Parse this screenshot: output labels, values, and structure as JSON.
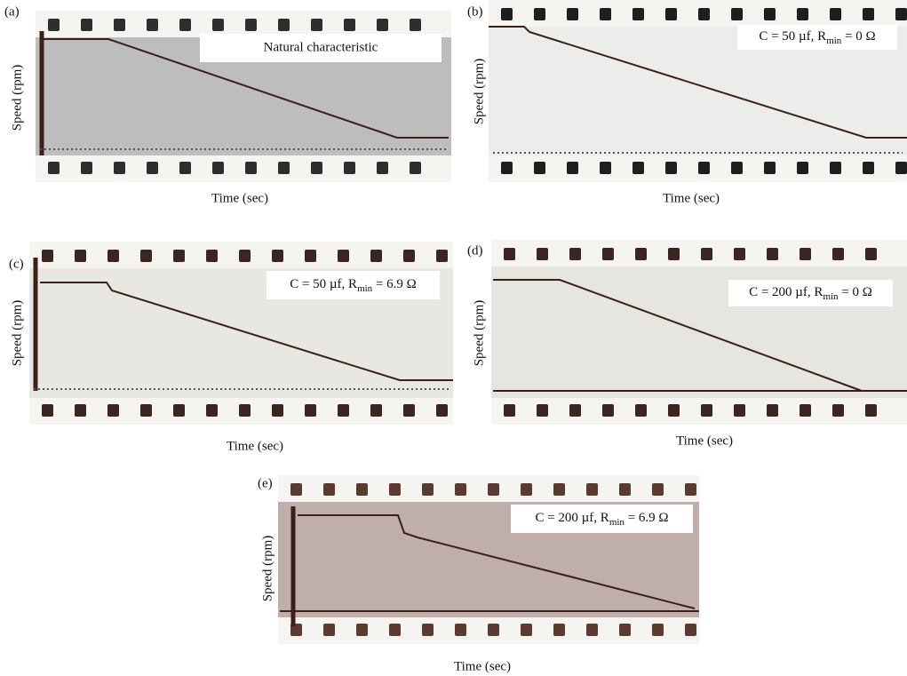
{
  "panels": [
    {
      "label": "(a)",
      "y_label": "Speed (rpm)",
      "x_label": "Time (sec)",
      "annotation": {
        "text": "Natural characteristic"
      }
    },
    {
      "label": "(b)",
      "y_label": "Speed (rpm)",
      "x_label": "Time (sec)",
      "annotation": {
        "prefix": "C = 50 µf, R",
        "subscript": "min",
        "suffix": " = 0 Ω"
      }
    },
    {
      "label": "(c)",
      "y_label": "Speed (rpm)",
      "x_label": "Time (sec)",
      "annotation": {
        "prefix": "C = 50 µf, R",
        "subscript": "min",
        "suffix": " = 6.9 Ω"
      }
    },
    {
      "label": "(d)",
      "y_label": "Speed (rpm)",
      "x_label": "Time (sec)",
      "annotation": {
        "prefix": "C = 200 µf, R",
        "subscript": "min",
        "suffix": " = 0 Ω"
      }
    },
    {
      "label": "(e)",
      "y_label": "Speed (rpm)",
      "x_label": "Time (sec)",
      "annotation": {
        "prefix": "C = 200 µf, R",
        "subscript": "min",
        "suffix": " = 6.9 Ω"
      }
    }
  ]
}
